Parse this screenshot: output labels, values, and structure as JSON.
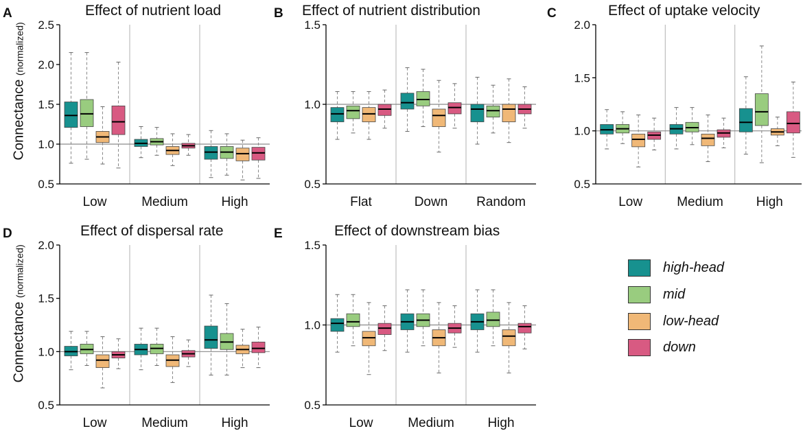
{
  "colors": {
    "high-head": "#17918f",
    "mid": "#99cc7f",
    "low-head": "#f0b877",
    "down": "#d85a82",
    "divider": "#bdbdbd",
    "whisker": "#888888"
  },
  "y_axis_label": "Connectance",
  "y_axis_unit": "(normalized)",
  "legend": [
    {
      "key": "high-head",
      "label": "high-head"
    },
    {
      "key": "mid",
      "label": "mid"
    },
    {
      "key": "low-head",
      "label": "low-head"
    },
    {
      "key": "down",
      "label": "down"
    }
  ],
  "chart_data": [
    {
      "panel": "A",
      "type": "box",
      "title": "Effect of nutrient load",
      "ylim": [
        0.5,
        2.5
      ],
      "yticks": [
        "0.5",
        "1.0",
        "1.5",
        "2.0",
        "2.5"
      ],
      "reference_line": 1.0,
      "categories": [
        "Low",
        "Medium",
        "High"
      ],
      "series_order": [
        "high-head",
        "mid",
        "low-head",
        "down"
      ],
      "boxes": [
        [
          [
            0.76,
            1.21,
            1.36,
            1.53,
            2.15
          ],
          [
            0.81,
            1.22,
            1.38,
            1.56,
            2.15
          ],
          [
            0.75,
            1.02,
            1.09,
            1.16,
            1.47
          ],
          [
            0.7,
            1.12,
            1.28,
            1.48,
            2.03
          ]
        ],
        [
          [
            0.83,
            0.97,
            1.01,
            1.06,
            1.22
          ],
          [
            0.86,
            0.99,
            1.03,
            1.07,
            1.21
          ],
          [
            0.73,
            0.87,
            0.92,
            0.97,
            1.13
          ],
          [
            0.86,
            0.95,
            0.98,
            1.01,
            1.12
          ]
        ],
        [
          [
            0.58,
            0.81,
            0.9,
            0.97,
            1.17
          ],
          [
            0.61,
            0.82,
            0.9,
            0.97,
            1.13
          ],
          [
            0.55,
            0.79,
            0.88,
            0.95,
            1.05
          ],
          [
            0.57,
            0.8,
            0.89,
            0.96,
            1.08
          ]
        ]
      ]
    },
    {
      "panel": "B",
      "type": "box",
      "title": "Effect of nutrient distribution",
      "ylim": [
        0.5,
        1.5
      ],
      "yticks": [
        "0.5",
        "1.0",
        "1.5"
      ],
      "reference_line": 1.0,
      "categories": [
        "Flat",
        "Down",
        "Random"
      ],
      "series_order": [
        "high-head",
        "mid",
        "low-head",
        "down"
      ],
      "boxes": [
        [
          [
            0.78,
            0.89,
            0.94,
            0.98,
            1.08
          ],
          [
            0.82,
            0.91,
            0.96,
            0.99,
            1.08
          ],
          [
            0.78,
            0.89,
            0.94,
            0.98,
            1.08
          ],
          [
            0.85,
            0.93,
            0.97,
            1.0,
            1.09
          ]
        ],
        [
          [
            0.83,
            0.97,
            1.01,
            1.07,
            1.23
          ],
          [
            0.86,
            0.99,
            1.03,
            1.08,
            1.22
          ],
          [
            0.7,
            0.86,
            0.93,
            0.97,
            1.15
          ],
          [
            0.85,
            0.94,
            0.98,
            1.01,
            1.13
          ]
        ],
        [
          [
            0.75,
            0.89,
            0.97,
            1.0,
            1.17
          ],
          [
            0.82,
            0.92,
            0.96,
            0.99,
            1.12
          ],
          [
            0.76,
            0.89,
            0.97,
            1.0,
            1.16
          ],
          [
            0.85,
            0.94,
            0.97,
            1.0,
            1.11
          ]
        ]
      ]
    },
    {
      "panel": "C",
      "type": "box",
      "title": "Effect of uptake velocity",
      "ylim": [
        0.5,
        2.0
      ],
      "yticks": [
        "0.5",
        "1.0",
        "1.5",
        "2.0"
      ],
      "reference_line": 1.0,
      "categories": [
        "Low",
        "Medium",
        "High"
      ],
      "series_order": [
        "high-head",
        "mid",
        "low-head",
        "down"
      ],
      "boxes": [
        [
          [
            0.83,
            0.97,
            1.01,
            1.06,
            1.2
          ],
          [
            0.88,
            0.98,
            1.02,
            1.06,
            1.18
          ],
          [
            0.66,
            0.85,
            0.92,
            0.97,
            1.15
          ],
          [
            0.82,
            0.92,
            0.96,
            0.99,
            1.12
          ]
        ],
        [
          [
            0.83,
            0.97,
            1.02,
            1.06,
            1.22
          ],
          [
            0.87,
            0.99,
            1.03,
            1.08,
            1.22
          ],
          [
            0.71,
            0.86,
            0.93,
            0.97,
            1.15
          ],
          [
            0.84,
            0.94,
            0.98,
            1.01,
            1.12
          ]
        ],
        [
          [
            0.78,
            0.99,
            1.08,
            1.21,
            1.51
          ],
          [
            0.7,
            1.05,
            1.18,
            1.35,
            1.8
          ],
          [
            0.86,
            0.96,
            0.99,
            1.02,
            1.13
          ],
          [
            0.75,
            0.98,
            1.07,
            1.18,
            1.46
          ]
        ]
      ]
    },
    {
      "panel": "D",
      "type": "box",
      "title": "Effect of dispersal rate",
      "ylim": [
        0.5,
        2.0
      ],
      "yticks": [
        "0.5",
        "1.0",
        "1.5",
        "2.0"
      ],
      "reference_line": 1.0,
      "categories": [
        "Low",
        "Medium",
        "High"
      ],
      "series_order": [
        "high-head",
        "mid",
        "low-head",
        "down"
      ],
      "boxes": [
        [
          [
            0.83,
            0.96,
            1.0,
            1.05,
            1.19
          ],
          [
            0.87,
            0.98,
            1.02,
            1.07,
            1.19
          ],
          [
            0.66,
            0.85,
            0.92,
            0.97,
            1.14
          ],
          [
            0.84,
            0.94,
            0.97,
            1.0,
            1.12
          ]
        ],
        [
          [
            0.83,
            0.97,
            1.02,
            1.07,
            1.22
          ],
          [
            0.87,
            0.98,
            1.03,
            1.07,
            1.22
          ],
          [
            0.71,
            0.86,
            0.92,
            0.97,
            1.14
          ],
          [
            0.86,
            0.95,
            0.98,
            1.01,
            1.11
          ]
        ],
        [
          [
            0.78,
            1.03,
            1.11,
            1.24,
            1.53
          ],
          [
            0.78,
            1.02,
            1.09,
            1.17,
            1.45
          ],
          [
            0.85,
            0.98,
            1.02,
            1.06,
            1.21
          ],
          [
            0.85,
            0.99,
            1.03,
            1.09,
            1.23
          ]
        ]
      ]
    },
    {
      "panel": "E",
      "type": "box",
      "title": "Effect of downstream bias",
      "ylim": [
        0.5,
        1.5
      ],
      "yticks": [
        "0.5",
        "1.0",
        "1.5"
      ],
      "reference_line": 1.0,
      "categories": [
        "Low",
        "Medium",
        "High"
      ],
      "series_order": [
        "high-head",
        "mid",
        "low-head",
        "down"
      ],
      "boxes": [
        [
          [
            0.83,
            0.96,
            1.01,
            1.04,
            1.19
          ],
          [
            0.87,
            0.99,
            1.02,
            1.07,
            1.19
          ],
          [
            0.69,
            0.87,
            0.92,
            0.96,
            1.14
          ],
          [
            0.84,
            0.94,
            0.98,
            1.01,
            1.12
          ]
        ],
        [
          [
            0.83,
            0.97,
            1.02,
            1.07,
            1.22
          ],
          [
            0.87,
            0.99,
            1.03,
            1.07,
            1.22
          ],
          [
            0.7,
            0.87,
            0.92,
            0.97,
            1.14
          ],
          [
            0.86,
            0.95,
            0.98,
            1.01,
            1.12
          ]
        ],
        [
          [
            0.83,
            0.97,
            1.02,
            1.07,
            1.22
          ],
          [
            0.87,
            0.99,
            1.03,
            1.08,
            1.22
          ],
          [
            0.7,
            0.87,
            0.93,
            0.97,
            1.14
          ],
          [
            0.85,
            0.95,
            0.99,
            1.01,
            1.12
          ]
        ]
      ]
    }
  ]
}
